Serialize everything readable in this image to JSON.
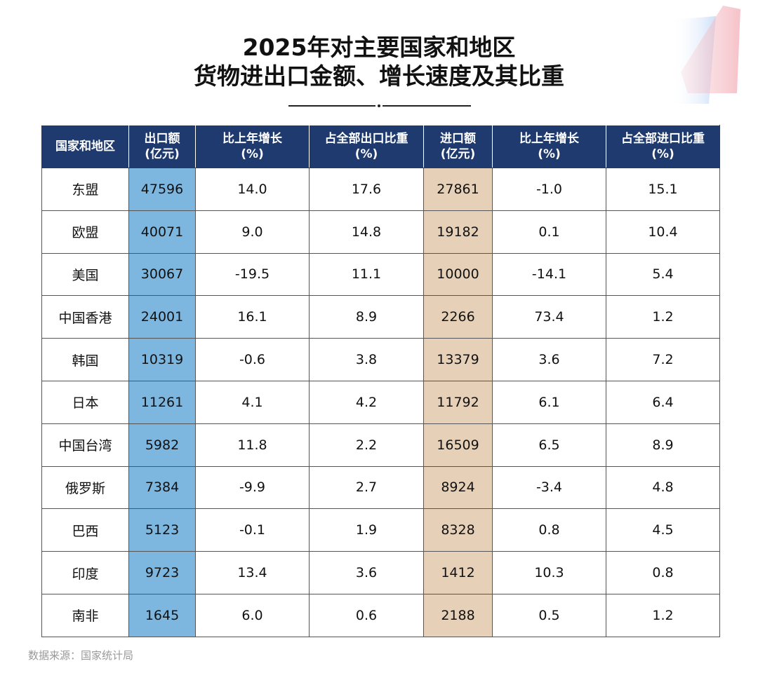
{
  "title_line1": "2025年对主要国家和地区",
  "title_line2": "货物进出口金额、增长速度及其比重",
  "colors": {
    "header_bg": "#1e3a6e",
    "export_col": "#7db7e0",
    "import_col": "#e6d1b8"
  },
  "table": {
    "headers": [
      [
        "国家和地区",
        ""
      ],
      [
        "出口额",
        "(亿元)"
      ],
      [
        "比上年增长",
        "(%)"
      ],
      [
        "占全部出口比重",
        "(%)"
      ],
      [
        "进口额",
        "(亿元)"
      ],
      [
        "比上年增长",
        "(%)"
      ],
      [
        "占全部进口比重",
        "(%)"
      ]
    ],
    "rows": [
      [
        "东盟",
        "47596",
        "14.0",
        "17.6",
        "27861",
        "-1.0",
        "15.1"
      ],
      [
        "欧盟",
        "40071",
        "9.0",
        "14.8",
        "19182",
        "0.1",
        "10.4"
      ],
      [
        "美国",
        "30067",
        "-19.5",
        "11.1",
        "10000",
        "-14.1",
        "5.4"
      ],
      [
        "中国香港",
        "24001",
        "16.1",
        "8.9",
        "2266",
        "73.4",
        "1.2"
      ],
      [
        "韩国",
        "10319",
        "-0.6",
        "3.8",
        "13379",
        "3.6",
        "7.2"
      ],
      [
        "日本",
        "11261",
        "4.1",
        "4.2",
        "11792",
        "6.1",
        "6.4"
      ],
      [
        "中国台湾",
        "5982",
        "11.8",
        "2.2",
        "16509",
        "6.5",
        "8.9"
      ],
      [
        "俄罗斯",
        "7384",
        "-9.9",
        "2.7",
        "8924",
        "-3.4",
        "4.8"
      ],
      [
        "巴西",
        "5123",
        "-0.1",
        "1.9",
        "8328",
        "0.8",
        "4.5"
      ],
      [
        "印度",
        "9723",
        "13.4",
        "3.6",
        "1412",
        "10.3",
        "0.8"
      ],
      [
        "南非",
        "1645",
        "6.0",
        "0.6",
        "2188",
        "0.5",
        "1.2"
      ]
    ]
  },
  "source": "数据来源：国家统计局"
}
